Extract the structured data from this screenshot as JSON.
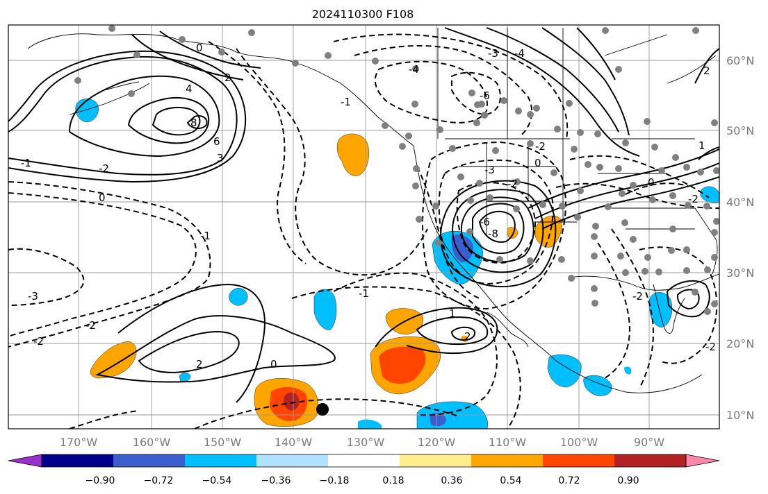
{
  "figure": {
    "title": "2024110300 F108"
  },
  "axes": {
    "lat_labels": [
      "60°N",
      "50°N",
      "40°N",
      "30°N",
      "20°N",
      "10°N"
    ],
    "lon_labels": [
      "170°W",
      "160°W",
      "150°W",
      "140°W",
      "130°W",
      "120°W",
      "110°W",
      "100°W",
      "90°W"
    ]
  },
  "colorbar": {
    "tick_labels": [
      "−0.90",
      "−0.72",
      "−0.54",
      "−0.36",
      "−0.18",
      "0.18",
      "0.36",
      "0.54",
      "0.72",
      "0.90"
    ],
    "colors": [
      "#9932cc",
      "#00008b",
      "#3a5fcd",
      "#00bfff",
      "#b0e2ff",
      "#ffffff",
      "#ffec8b",
      "#ffa500",
      "#ff4500",
      "#b22222",
      "#ff88aa"
    ],
    "extend": "both"
  },
  "contour_labels": [
    "0",
    "2",
    "4",
    "6",
    "8",
    "3",
    "-1",
    "-2",
    "-3",
    "0",
    "-2",
    "-2",
    "-1",
    "2",
    "0",
    "1",
    "2",
    "-4",
    "-6",
    "-3",
    "-4",
    "-2",
    "-3",
    "0",
    "-2",
    "-1",
    "-6",
    "-8",
    "2",
    "1",
    "-2",
    "0",
    "-1",
    "-2",
    "-2"
  ],
  "map": {
    "fill_colors": {
      "orange": "#ffa500",
      "red": "#ff4500",
      "darkred": "#b22222",
      "lightblue": "#00bfff",
      "blue": "#3a5fcd",
      "purple": "#9932cc"
    },
    "point_color": "#808080",
    "marker_color": "#000000"
  }
}
